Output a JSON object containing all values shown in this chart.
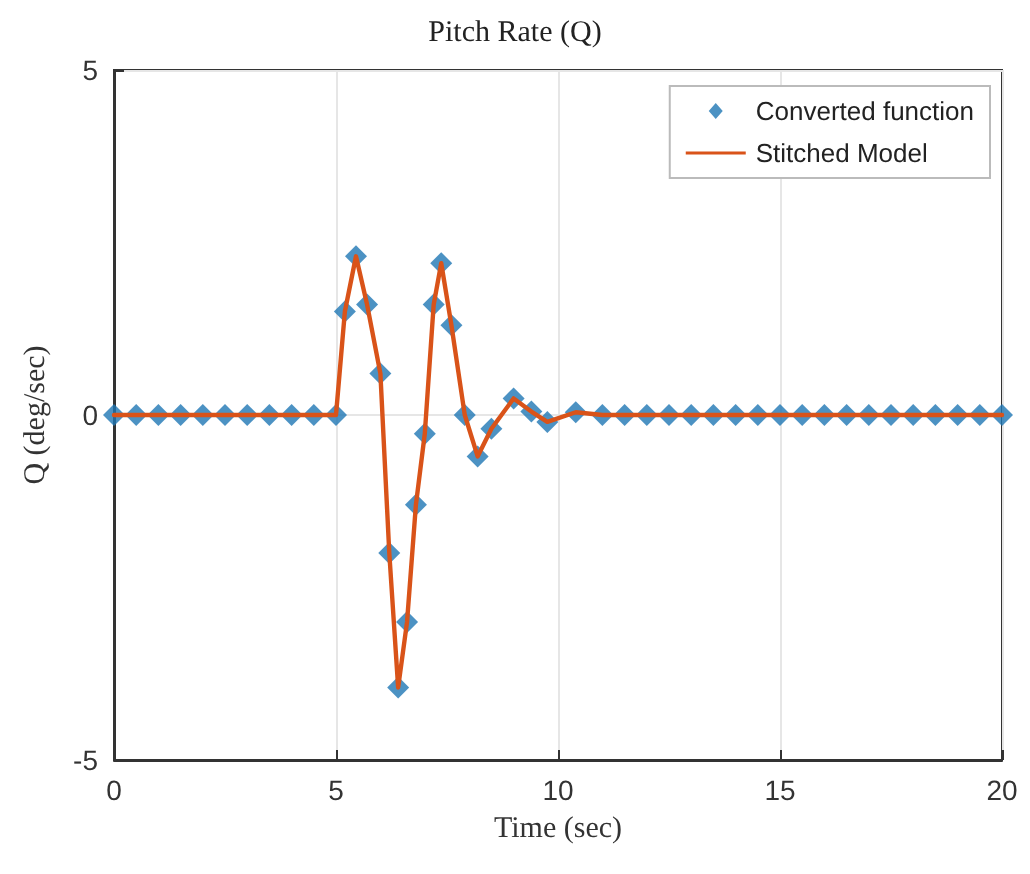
{
  "chart_data": {
    "type": "line",
    "title": "Pitch Rate (Q)",
    "xlabel": "Time (sec)",
    "ylabel": "Q (deg/sec)",
    "xlim": [
      0,
      20
    ],
    "xticks": [
      0,
      5,
      10,
      15,
      20
    ],
    "ylim": [
      -5,
      5
    ],
    "yticks": [
      -5,
      0,
      5
    ],
    "grid": true,
    "legend": "top right",
    "series": [
      {
        "name": "Converted function",
        "type": "scatter",
        "marker": "diamond",
        "color": "#1f77b4",
        "x": [
          0,
          0.5,
          1,
          1.5,
          2,
          2.5,
          3,
          3.5,
          4,
          4.5,
          5,
          5.2,
          5.45,
          5.7,
          6,
          6.2,
          6.4,
          6.6,
          6.8,
          7,
          7.2,
          7.37,
          7.6,
          7.9,
          8.19,
          8.5,
          9,
          9.4,
          9.76,
          10.4,
          11,
          11.5,
          12,
          12.5,
          13,
          13.5,
          14,
          14.5,
          15,
          15.5,
          16,
          16.5,
          17,
          17.5,
          18,
          18.5,
          19,
          19.5,
          20
        ],
        "values": [
          0,
          0,
          0,
          0,
          0,
          0,
          0,
          0,
          0,
          0,
          0,
          1.5,
          2.3,
          1.6,
          0.6,
          -2,
          -3.95,
          -3,
          -1.3,
          -0.27,
          1.6,
          2.2,
          1.3,
          0,
          -0.6,
          -0.2,
          0.24,
          0.05,
          -0.1,
          0.04,
          0,
          0,
          0,
          0,
          0,
          0,
          0,
          0,
          0,
          0,
          0,
          0,
          0,
          0,
          0,
          0,
          0,
          0,
          0
        ]
      },
      {
        "name": "Stitched Model",
        "type": "line",
        "marker": "none",
        "color": "#d95319",
        "x": [
          0,
          5,
          5.2,
          5.45,
          5.7,
          6,
          6.2,
          6.4,
          6.6,
          6.8,
          7,
          7.2,
          7.37,
          7.6,
          7.9,
          8.19,
          8.5,
          9,
          9.4,
          9.76,
          10.4,
          11,
          20
        ],
        "values": [
          0,
          0,
          1.5,
          2.3,
          1.6,
          0.6,
          -2,
          -3.95,
          -3,
          -1.3,
          -0.27,
          1.6,
          2.2,
          1.3,
          0,
          -0.6,
          -0.2,
          0.24,
          0.05,
          -0.1,
          0.04,
          0,
          0
        ]
      }
    ]
  }
}
